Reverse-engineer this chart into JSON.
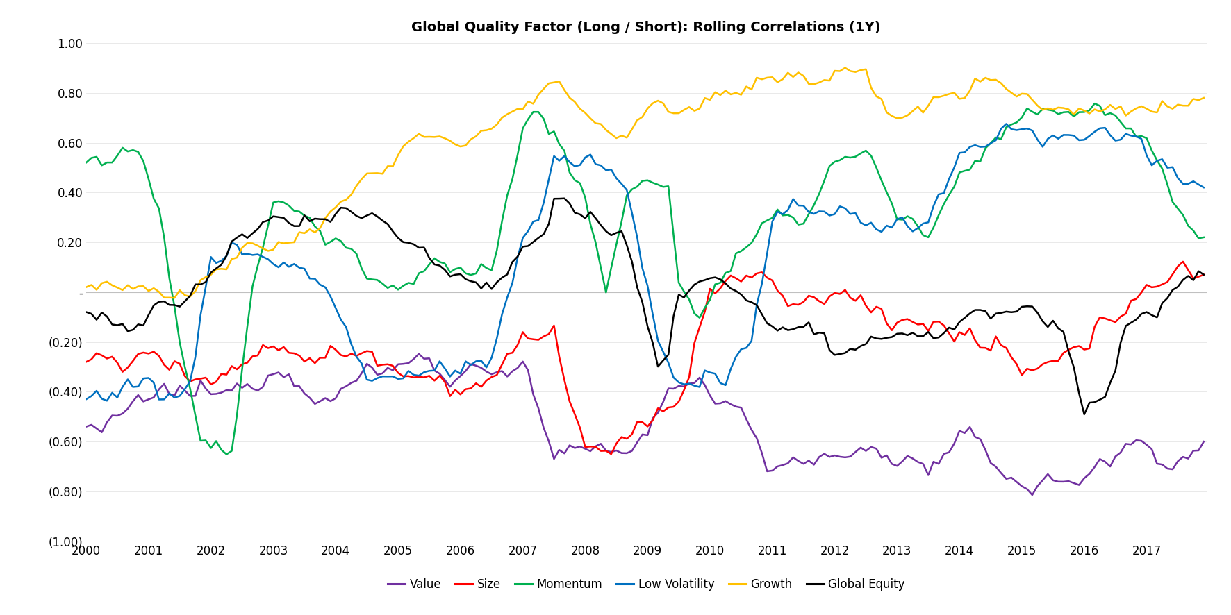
{
  "title": "Global Quality Factor (Long / Short): Rolling Correlations (1Y)",
  "title_fontsize": 14,
  "title_fontweight": "bold",
  "ylim": [
    -1.0,
    1.0
  ],
  "yticks": [
    1.0,
    0.8,
    0.6,
    0.4,
    0.2,
    0.0,
    -0.2,
    -0.4,
    -0.6,
    -0.8,
    -1.0
  ],
  "ytick_labels": [
    "1.00",
    "0.80",
    "0.60",
    "0.40",
    "0.20",
    "-",
    "(0.20)",
    "(0.40)",
    "(0.60)",
    "(0.80)",
    "(1.00)"
  ],
  "xtick_years": [
    2000,
    2001,
    2002,
    2003,
    2004,
    2005,
    2006,
    2007,
    2008,
    2009,
    2010,
    2011,
    2012,
    2013,
    2014,
    2015,
    2016,
    2017
  ],
  "series_colors": {
    "Value": "#7030A0",
    "Size": "#FF0000",
    "Momentum": "#00B050",
    "Low Volatility": "#0070C0",
    "Growth": "#FFC000",
    "Global Equity": "#000000"
  },
  "legend_order": [
    "Value",
    "Size",
    "Momentum",
    "Low Volatility",
    "Growth",
    "Global Equity"
  ],
  "zero_line_color": "#C0C0C0",
  "background_color": "#FFFFFF",
  "figsize": [
    17.72,
    8.86
  ],
  "dpi": 100
}
